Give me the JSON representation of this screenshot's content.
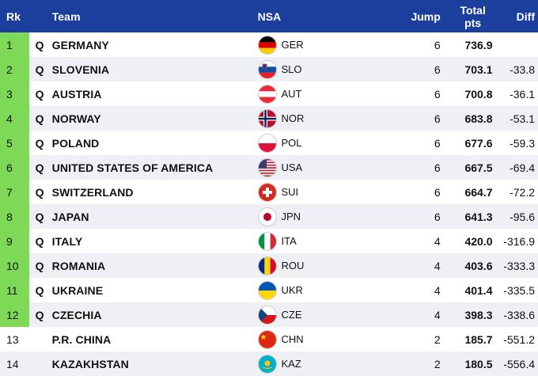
{
  "header": {
    "rank": "Rk",
    "team": "Team",
    "nsa": "NSA",
    "jump": "Jump",
    "total_line1": "Total",
    "total_line2": "pts",
    "diff": "Diff"
  },
  "colors": {
    "header_bg": "#1c3f9e",
    "qualified_rank_bg": "#7ed957",
    "alt_row_bg": "#eef0f5"
  },
  "rows": [
    {
      "rank": "1",
      "q": "Q",
      "team": "GERMANY",
      "flag_icon": "flag-germany-icon",
      "nsa": "GER",
      "jump": "6",
      "total": "736.9",
      "diff": ""
    },
    {
      "rank": "2",
      "q": "Q",
      "team": "SLOVENIA",
      "flag_icon": "flag-slovenia-icon",
      "nsa": "SLO",
      "jump": "6",
      "total": "703.1",
      "diff": "-33.8"
    },
    {
      "rank": "3",
      "q": "Q",
      "team": "AUSTRIA",
      "flag_icon": "flag-austria-icon",
      "nsa": "AUT",
      "jump": "6",
      "total": "700.8",
      "diff": "-36.1"
    },
    {
      "rank": "4",
      "q": "Q",
      "team": "NORWAY",
      "flag_icon": "flag-norway-icon",
      "nsa": "NOR",
      "jump": "6",
      "total": "683.8",
      "diff": "-53.1"
    },
    {
      "rank": "5",
      "q": "Q",
      "team": "POLAND",
      "flag_icon": "flag-poland-icon",
      "nsa": "POL",
      "jump": "6",
      "total": "677.6",
      "diff": "-59.3"
    },
    {
      "rank": "6",
      "q": "Q",
      "team": "UNITED STATES OF AMERICA",
      "flag_icon": "flag-usa-icon",
      "nsa": "USA",
      "jump": "6",
      "total": "667.5",
      "diff": "-69.4"
    },
    {
      "rank": "7",
      "q": "Q",
      "team": "SWITZERLAND",
      "flag_icon": "flag-switzerland-icon",
      "nsa": "SUI",
      "jump": "6",
      "total": "664.7",
      "diff": "-72.2"
    },
    {
      "rank": "8",
      "q": "Q",
      "team": "JAPAN",
      "flag_icon": "flag-japan-icon",
      "nsa": "JPN",
      "jump": "6",
      "total": "641.3",
      "diff": "-95.6"
    },
    {
      "rank": "9",
      "q": "Q",
      "team": "ITALY",
      "flag_icon": "flag-italy-icon",
      "nsa": "ITA",
      "jump": "4",
      "total": "420.0",
      "diff": "-316.9"
    },
    {
      "rank": "10",
      "q": "Q",
      "team": "ROMANIA",
      "flag_icon": "flag-romania-icon",
      "nsa": "ROU",
      "jump": "4",
      "total": "403.6",
      "diff": "-333.3"
    },
    {
      "rank": "11",
      "q": "Q",
      "team": "UKRAINE",
      "flag_icon": "flag-ukraine-icon",
      "nsa": "UKR",
      "jump": "4",
      "total": "401.4",
      "diff": "-335.5"
    },
    {
      "rank": "12",
      "q": "Q",
      "team": "CZECHIA",
      "flag_icon": "flag-czechia-icon",
      "nsa": "CZE",
      "jump": "4",
      "total": "398.3",
      "diff": "-338.6"
    },
    {
      "rank": "13",
      "q": "",
      "team": "P.R. CHINA",
      "flag_icon": "flag-china-icon",
      "nsa": "CHN",
      "jump": "2",
      "total": "185.7",
      "diff": "-551.2"
    },
    {
      "rank": "14",
      "q": "",
      "team": "KAZAKHSTAN",
      "flag_icon": "flag-kazakhstan-icon",
      "nsa": "KAZ",
      "jump": "2",
      "total": "180.5",
      "diff": "-556.4"
    }
  ]
}
